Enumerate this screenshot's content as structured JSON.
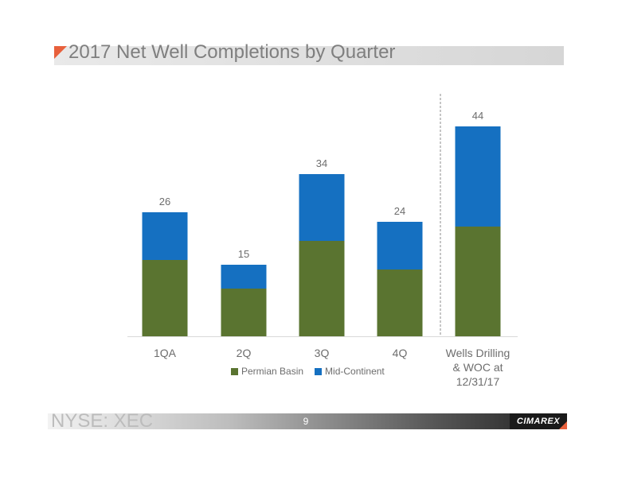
{
  "slide": {
    "title": "2017 Net Well Completions by Quarter",
    "ticker": "NYSE: XEC",
    "page_number": "9",
    "logo_text": "CIMAREX"
  },
  "colors": {
    "permian": "#5a7430",
    "midcontinent": "#1570c1",
    "accent": "#e8603c"
  },
  "chart_data": {
    "type": "bar",
    "stacked": true,
    "title": "2017 Net Well Completions by Quarter",
    "categories": [
      [
        "1QA"
      ],
      [
        "2Q"
      ],
      [
        "3Q"
      ],
      [
        "4Q"
      ],
      [
        "Wells Drilling",
        "& WOC at",
        "12/31/17"
      ]
    ],
    "series": [
      {
        "name": "Permian Basin",
        "color": "#5a7430",
        "values": [
          16,
          10,
          20,
          14,
          23
        ]
      },
      {
        "name": "Mid-Continent",
        "color": "#1570c1",
        "values": [
          10,
          5,
          14,
          10,
          21
        ]
      }
    ],
    "totals": [
      26,
      15,
      34,
      24,
      44
    ],
    "ylim": [
      0,
      50
    ],
    "grid": false,
    "legend_position": "bottom",
    "separator_before_index": 4
  }
}
